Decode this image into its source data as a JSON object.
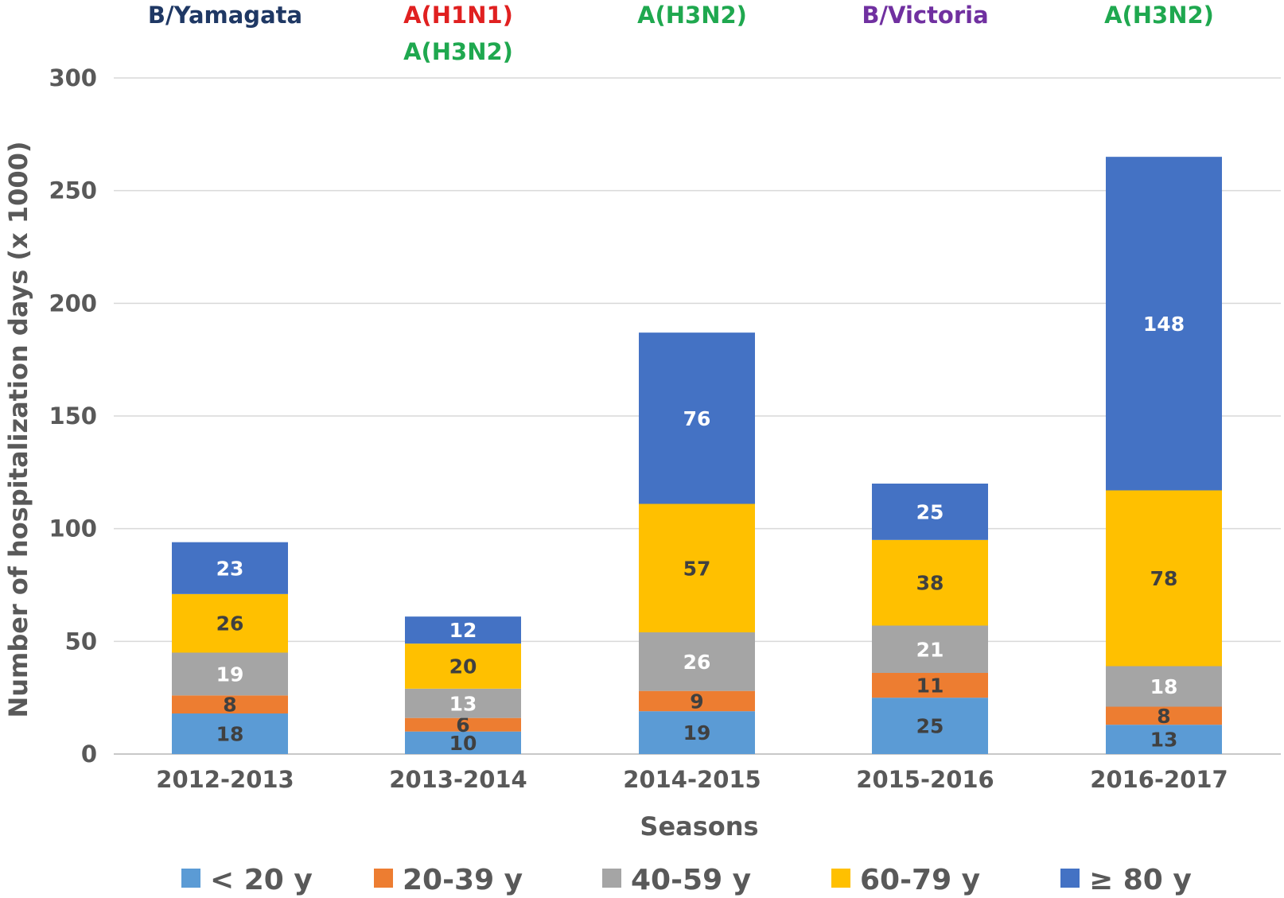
{
  "chart_data": {
    "type": "bar",
    "stacked": true,
    "xlabel": "Seasons",
    "ylabel": "Number of hospitalization days (x 1000)",
    "ylim": [
      0,
      300
    ],
    "yticks": [
      0,
      50,
      100,
      150,
      200,
      250,
      300
    ],
    "grid": true,
    "legend_position": "bottom",
    "categories": [
      "2012-2013",
      "2013-2014",
      "2014-2015",
      "2015-2016",
      "2016-2017"
    ],
    "series": [
      {
        "name": "< 20 y",
        "color": "#5b9bd5",
        "label_color": "#404040",
        "values": [
          18,
          10,
          19,
          25,
          13
        ]
      },
      {
        "name": "20-39 y",
        "color": "#ed7d31",
        "label_color": "#404040",
        "values": [
          8,
          6,
          9,
          11,
          8
        ]
      },
      {
        "name": "40-59 y",
        "color": "#a5a5a5",
        "label_color": "#ffffff",
        "values": [
          19,
          13,
          26,
          21,
          18
        ]
      },
      {
        "name": "60-79 y",
        "color": "#ffc000",
        "label_color": "#404040",
        "values": [
          26,
          20,
          57,
          38,
          78
        ]
      },
      {
        "name": "≥ 80 y",
        "color": "#4472c4",
        "label_color": "#ffffff",
        "values": [
          23,
          12,
          76,
          25,
          148
        ]
      }
    ],
    "annotations": [
      [
        {
          "text": "B/Yamagata",
          "color": "#1f3864"
        }
      ],
      [
        {
          "text": "A(H1N1)",
          "color": "#e02020"
        },
        {
          "text": "A(H3N2)",
          "color": "#1fa84f"
        }
      ],
      [
        {
          "text": "A(H3N2)",
          "color": "#1fa84f"
        }
      ],
      [
        {
          "text": "B/Victoria",
          "color": "#7030a0"
        }
      ],
      [
        {
          "text": "A(H3N2)",
          "color": "#1fa84f"
        }
      ]
    ]
  }
}
